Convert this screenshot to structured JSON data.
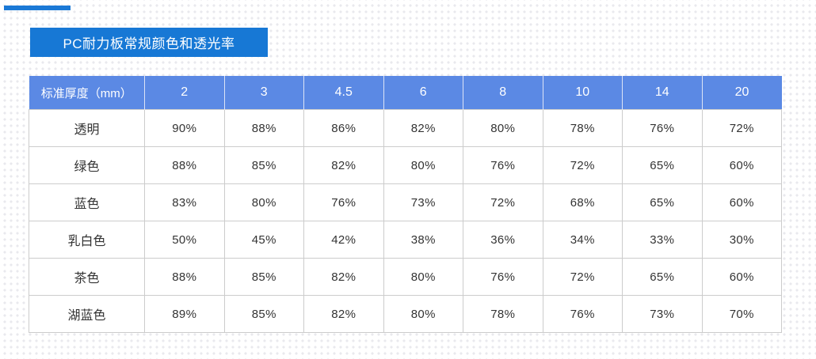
{
  "slide": {
    "title": "PC耐力板常规颜色和透光率"
  },
  "colors": {
    "banner_bg": "#1778d5",
    "accent_strip": "#1b79d6",
    "table_header_bg": "#5b89e4",
    "table_border": "#cccccc",
    "cell_text": "#333333",
    "background_dot": "#e9e9ee"
  },
  "table": {
    "corner_header": "标准厚度（mm）",
    "thickness_headers": [
      "2",
      "3",
      "4.5",
      "6",
      "8",
      "10",
      "14",
      "20"
    ],
    "rows": [
      {
        "label": "透明",
        "values": [
          "90%",
          "88%",
          "86%",
          "82%",
          "80%",
          "78%",
          "76%",
          "72%"
        ]
      },
      {
        "label": "绿色",
        "values": [
          "88%",
          "85%",
          "82%",
          "80%",
          "76%",
          "72%",
          "65%",
          "60%"
        ]
      },
      {
        "label": "蓝色",
        "values": [
          "83%",
          "80%",
          "76%",
          "73%",
          "72%",
          "68%",
          "65%",
          "60%"
        ]
      },
      {
        "label": "乳白色",
        "values": [
          "50%",
          "45%",
          "42%",
          "38%",
          "36%",
          "34%",
          "33%",
          "30%"
        ]
      },
      {
        "label": "茶色",
        "values": [
          "88%",
          "85%",
          "82%",
          "80%",
          "76%",
          "72%",
          "65%",
          "60%"
        ]
      },
      {
        "label": "湖蓝色",
        "values": [
          "89%",
          "85%",
          "82%",
          "80%",
          "78%",
          "76%",
          "73%",
          "70%"
        ]
      }
    ]
  }
}
